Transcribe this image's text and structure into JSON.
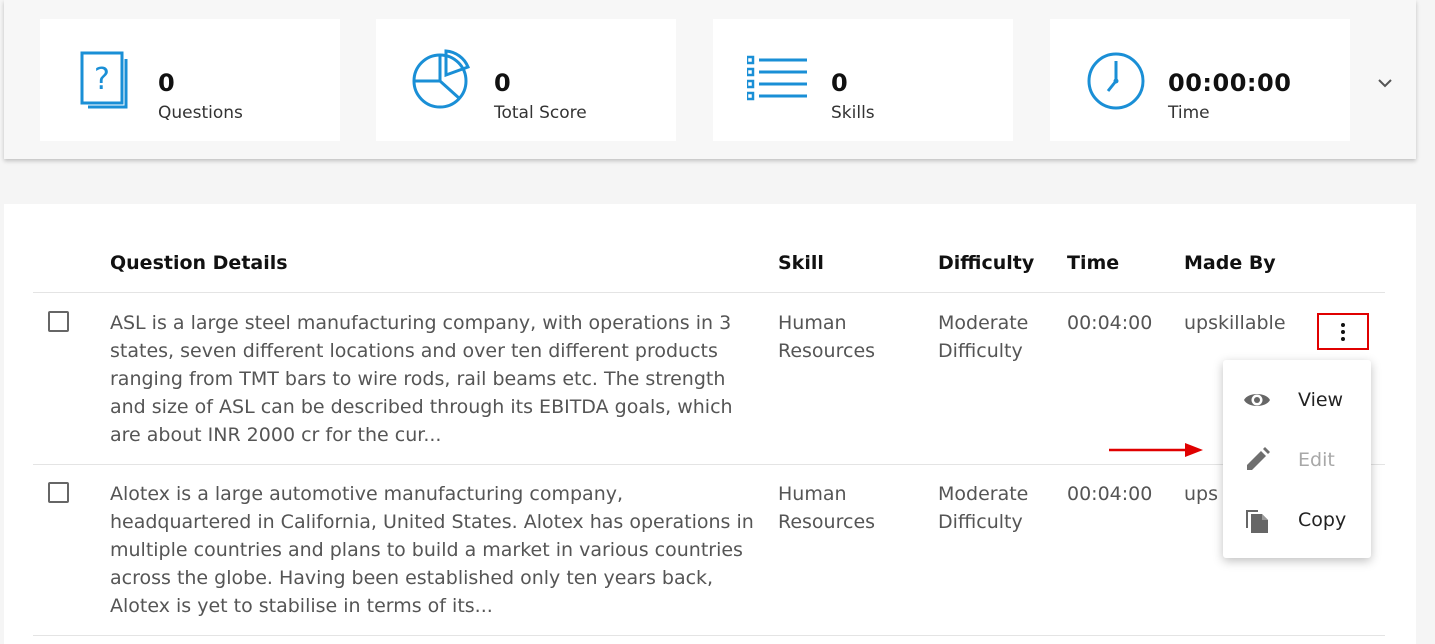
{
  "stats": {
    "questions": {
      "value": "0",
      "label": "Questions",
      "icon": "question-document-icon"
    },
    "total_score": {
      "value": "0",
      "label": "Total Score",
      "icon": "pie-chart-icon"
    },
    "skills": {
      "value": "0",
      "label": "Skills",
      "icon": "list-icon"
    },
    "time": {
      "value": "00:00:00",
      "label": "Time",
      "icon": "clock-icon"
    },
    "expand_icon": "chevron-down-icon"
  },
  "table": {
    "headers": [
      "Question Details",
      "Skill",
      "Difficulty",
      "Time",
      "Made By"
    ],
    "rows": [
      {
        "question": "ASL is a large steel manufacturing company, with operations in 3 states, seven different locations and over ten different products ranging from TMT bars to wire rods, rail beams etc. The strength and size of ASL can be described through its EBITDA goals, which are about INR 2000 cr for the cur...",
        "skill": "Human Resources",
        "difficulty": "Moderate Difficulty",
        "time": "00:04:00",
        "made_by": "upskillable"
      },
      {
        "question": "Alotex is a large automotive manufacturing company, headquartered in California, United States. Alotex has operations in multiple countries and plans to build a market in various countries across the globe. Having been established only ten years back, Alotex is yet to stabilise in terms of its...",
        "skill": "Human Resources",
        "difficulty": "Moderate Difficulty",
        "time": "00:04:00",
        "made_by": "ups"
      }
    ]
  },
  "context_menu": {
    "items": [
      {
        "label": "View",
        "icon": "eye-icon",
        "enabled": true
      },
      {
        "label": "Edit",
        "icon": "pencil-icon",
        "enabled": false
      },
      {
        "label": "Copy",
        "icon": "copy-icon",
        "enabled": true
      }
    ]
  },
  "colors": {
    "accent_blue": "#1a8fd6",
    "highlight_red": "#e00000",
    "menu_icon_grey": "#666666"
  }
}
